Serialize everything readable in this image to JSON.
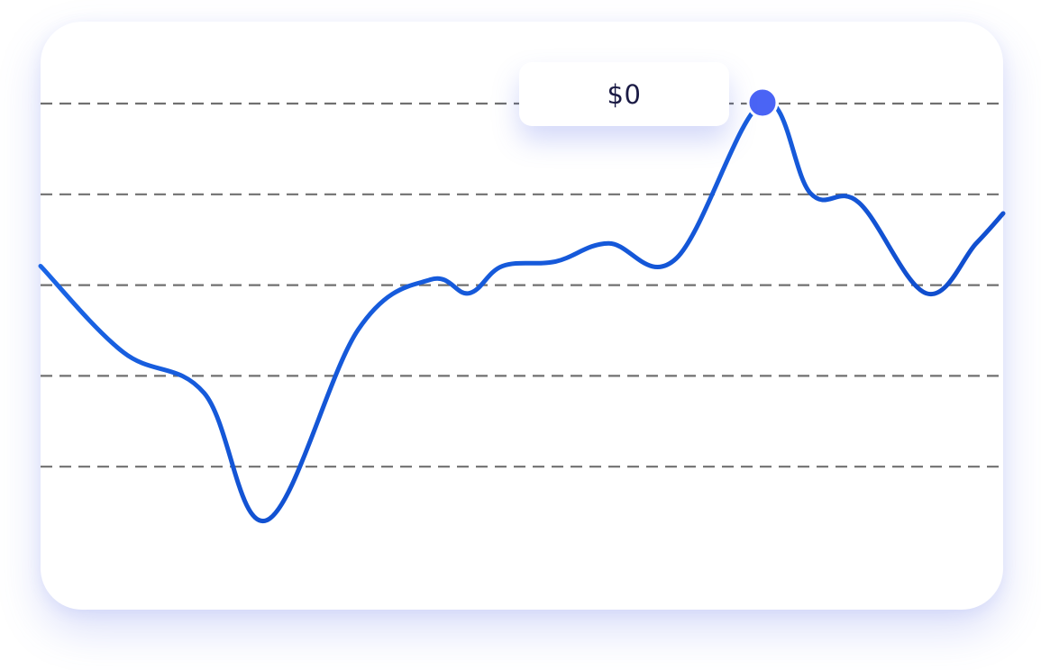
{
  "tooltip": {
    "value": "$0"
  },
  "colors": {
    "line_start": "#1f6ff0",
    "line_end": "#0a3fbf",
    "marker": "#4a64f5",
    "grid": "#707070",
    "card_shadow": "#5a6ee6"
  },
  "chart_data": {
    "type": "line",
    "title": "",
    "xlabel": "",
    "ylabel": "",
    "grid": {
      "horizontal_dashed": true,
      "lines": 5
    },
    "ylim": [
      0,
      5
    ],
    "series": [
      {
        "values": [
          {
            "x": 0,
            "y": 3.2
          },
          {
            "x": 0.086,
            "y": 2.25
          },
          {
            "x": 0.17,
            "y": 1.8
          },
          {
            "x": 0.235,
            "y": 0.4
          },
          {
            "x": 0.33,
            "y": 2.5
          },
          {
            "x": 0.405,
            "y": 3.05
          },
          {
            "x": 0.445,
            "y": 2.9
          },
          {
            "x": 0.48,
            "y": 3.2
          },
          {
            "x": 0.535,
            "y": 3.25
          },
          {
            "x": 0.59,
            "y": 3.45
          },
          {
            "x": 0.66,
            "y": 3.28
          },
          {
            "x": 0.75,
            "y": 5.0
          },
          {
            "x": 0.8,
            "y": 4.0
          },
          {
            "x": 0.85,
            "y": 3.9
          },
          {
            "x": 0.92,
            "y": 2.9
          },
          {
            "x": 0.972,
            "y": 3.45
          },
          {
            "x": 1.0,
            "y": 3.78
          }
        ]
      }
    ],
    "highlight": {
      "x": 0.75,
      "y": 5.0,
      "label": "$0"
    }
  }
}
